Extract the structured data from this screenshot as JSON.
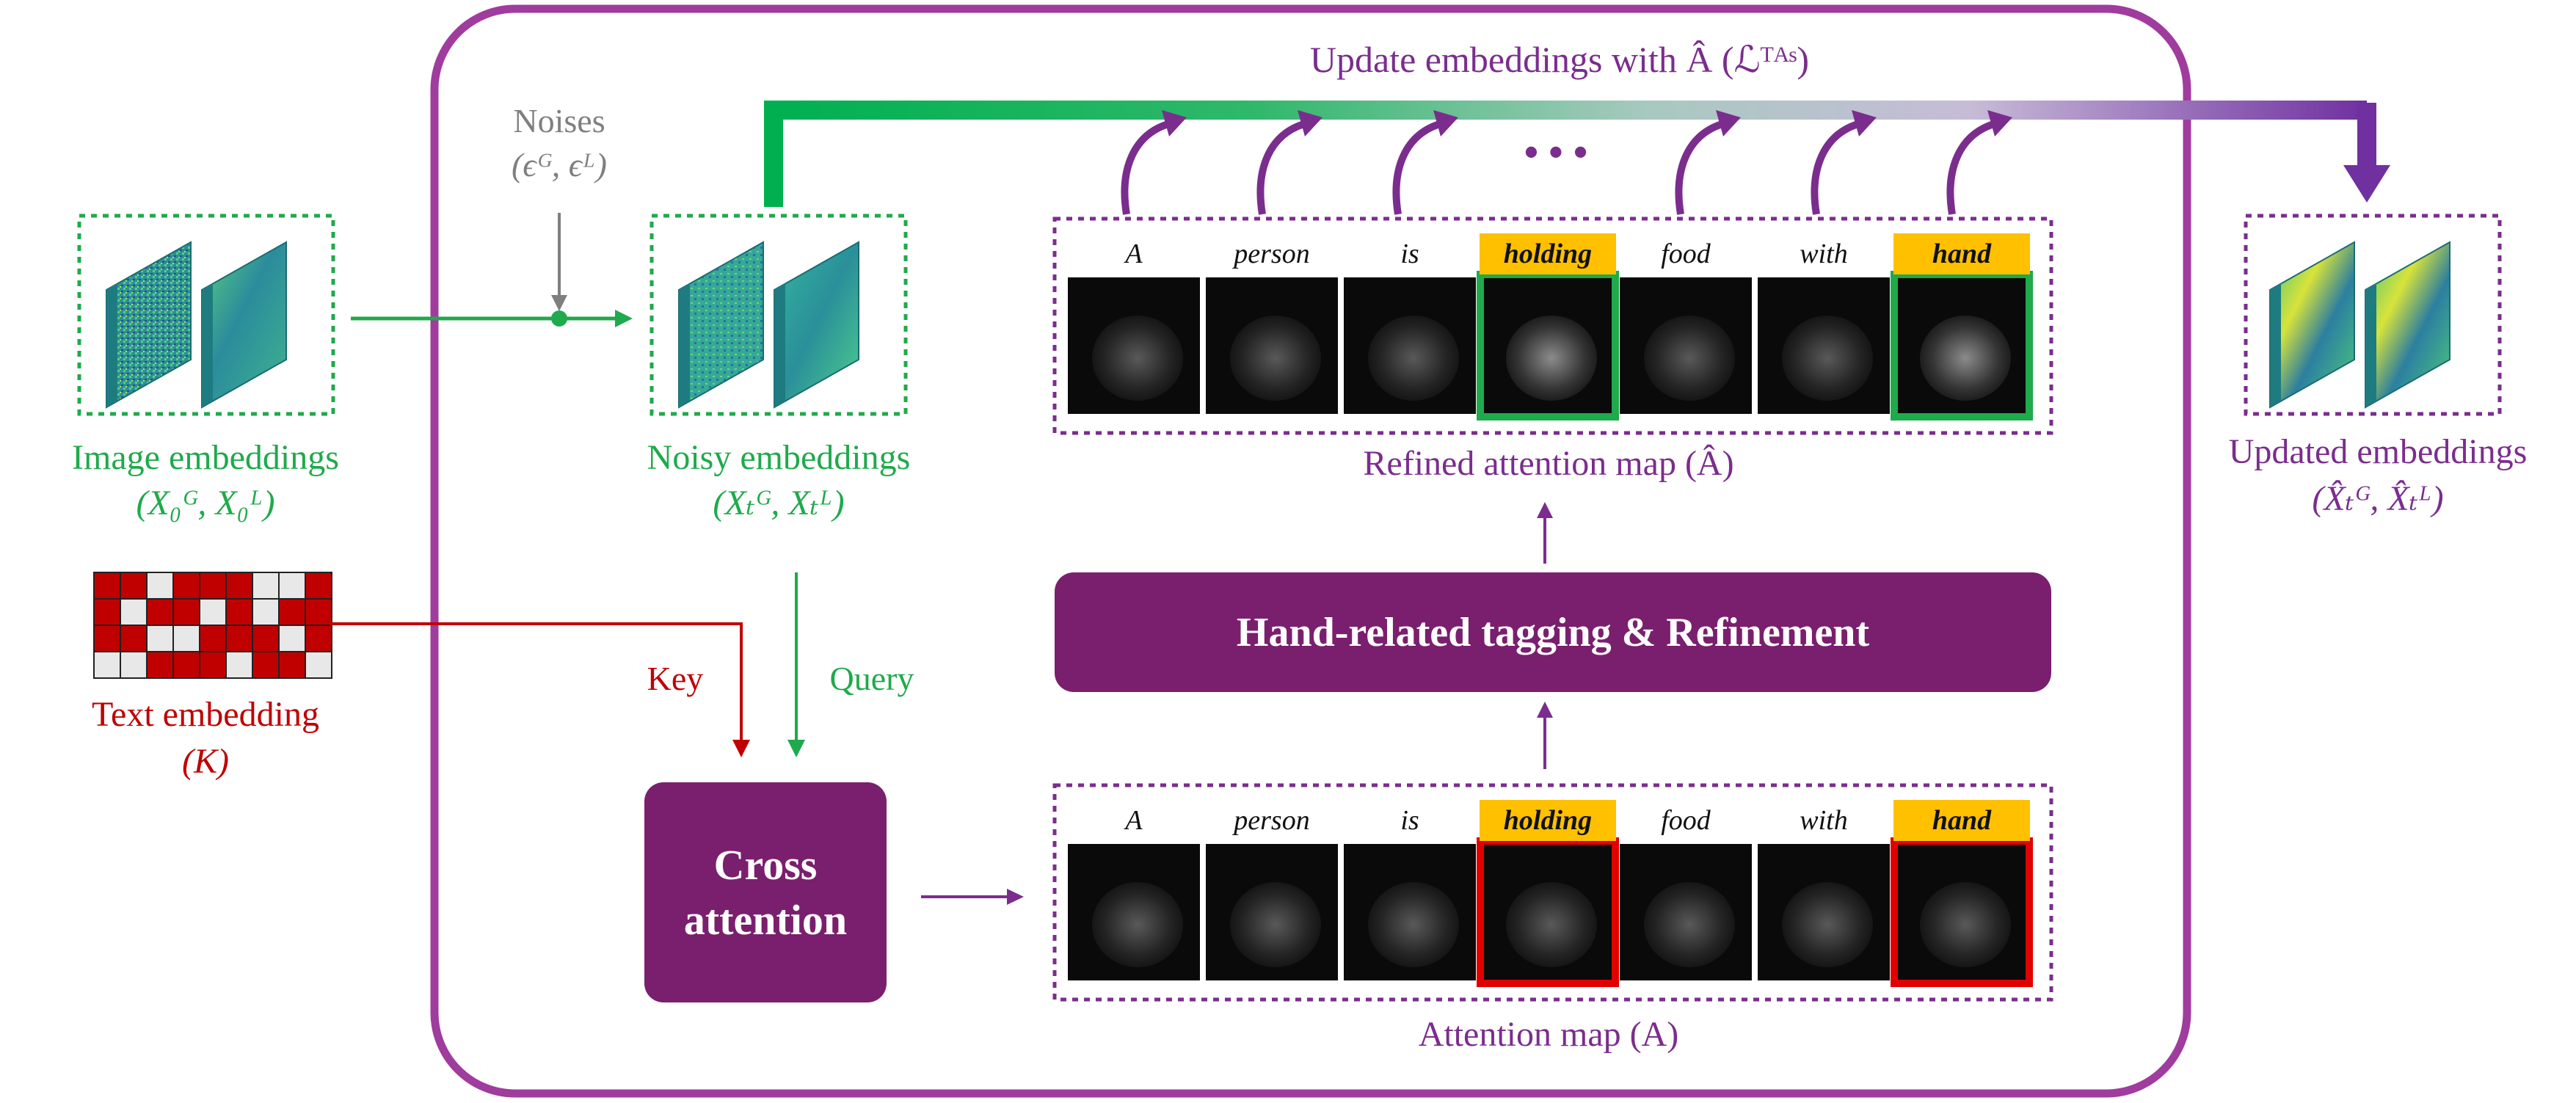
{
  "inputs": {
    "image_embeddings_label": "Image embeddings",
    "image_embeddings_math": "(X₀ᴳ, X₀ᴸ)",
    "text_embedding_label": "Text embedding",
    "text_embedding_math": "(K)",
    "noises_label": "Noises",
    "noises_math": "(ϵᴳ, ϵᴸ)"
  },
  "noisy": {
    "label": "Noisy embeddings",
    "math": "(Xₜᴳ, Xₜᴸ)"
  },
  "arrows": {
    "key_label": "Key",
    "query_label": "Query"
  },
  "cross_attention": {
    "line1": "Cross",
    "line2": "attention"
  },
  "refinement": {
    "label": "Hand-related tagging & Refinement"
  },
  "tokens": [
    "A",
    "person",
    "is",
    "holding",
    "food",
    "with",
    "hand"
  ],
  "tagged_tokens": [
    "holding",
    "hand"
  ],
  "attention_map": {
    "label": "Attention map (A)"
  },
  "refined_map": {
    "label": "Refined attention map (Â)"
  },
  "update": {
    "label": "Update embeddings with Â  (ℒᵀᴬˢ)",
    "ellipsis": "• • •"
  },
  "output": {
    "label": "Updated embeddings",
    "math": "(X̂ₜᴳ, X̂ₜᴸ)"
  },
  "colors": {
    "green": "#1faa4b",
    "purple": "#7b2d8e",
    "dark_purple": "#7a1f6e",
    "red": "#c00000",
    "gray": "#7f7f7f",
    "tag_yellow": "#ffc000",
    "frame_outer": "#a03c9e"
  }
}
